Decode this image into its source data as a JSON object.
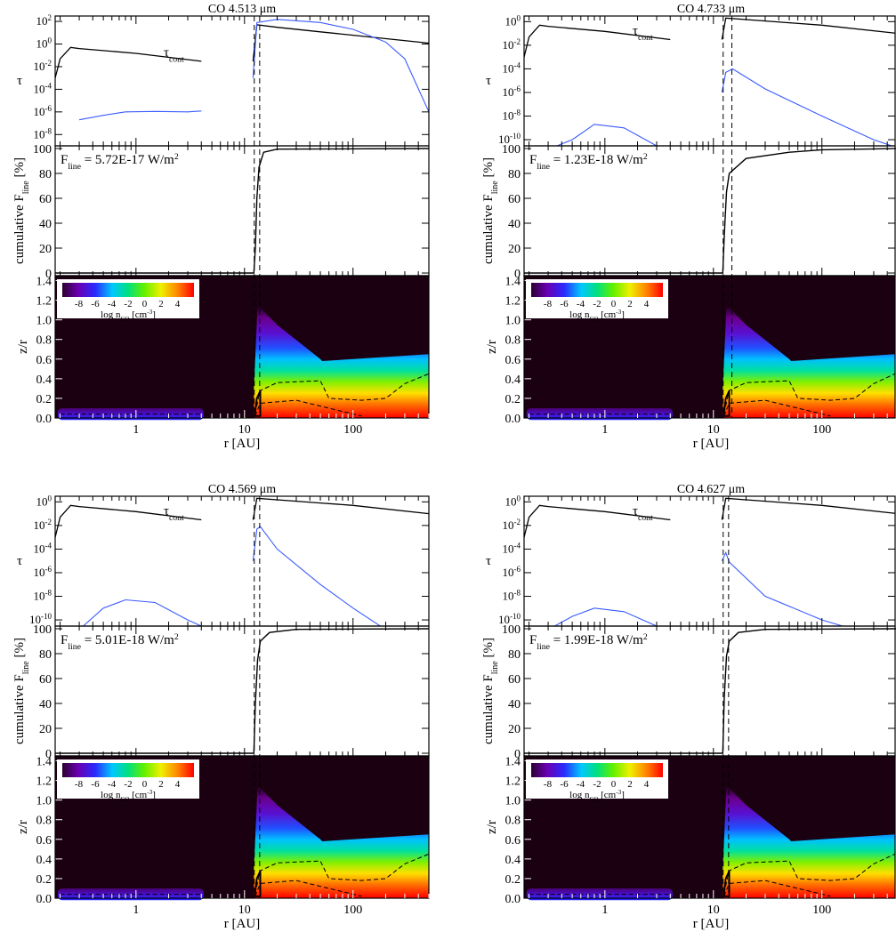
{
  "figure": {
    "x_label": "r [AU]",
    "tau_label": "τ",
    "tau_cont_label_main": "τ",
    "tau_cont_label_sub": "cont",
    "cum_label_main": "cumulative F",
    "cum_label_sub": "line",
    "cum_label_unit": " [%]",
    "zr_label": "z/r",
    "colorbar_label_main": "log n",
    "colorbar_label_sub": "CO",
    "colorbar_label_unit": " [cm",
    "colorbar_label_exp": "-3",
    "colorbar_label_close": "]",
    "flux_label_main": "F",
    "flux_label_sub": "line",
    "flux_unit_main": " W/m",
    "flux_unit_exp": "2",
    "colorbar_ticks": [
      "-8",
      "-6",
      "-4",
      "-2",
      "0",
      "2",
      "4"
    ]
  },
  "colors": {
    "tau_line": "#3a5bff",
    "continuum": "#000000",
    "background_dark": "#1a0010"
  },
  "chart_data": [
    {
      "type": "line",
      "title": "CO 4.513 μm",
      "flux": "5.72E-17",
      "x_scale": "log",
      "xlim": [
        0.18,
        500
      ],
      "x_ticks": [
        "1",
        "10",
        "100"
      ],
      "panels": {
        "tau": {
          "y_scale": "log",
          "ylim": [
            1e-09,
            300
          ],
          "y_ticks": [
            "10^2",
            "10^0",
            "10^-2",
            "10^-4",
            "10^-6",
            "10^-8"
          ],
          "continuum": [
            [
              0.18,
              0.001
            ],
            [
              0.2,
              0.05
            ],
            [
              0.25,
              0.5
            ],
            [
              0.3,
              0.4
            ],
            [
              1,
              0.15
            ],
            [
              4,
              0.03
            ],
            [
              12,
              0.03
            ],
            [
              13,
              50
            ],
            [
              20,
              30
            ],
            [
              50,
              12
            ],
            [
              100,
              6
            ],
            [
              500,
              1.2
            ]
          ],
          "line": [
            [
              0.3,
              2e-07
            ],
            [
              0.5,
              5e-07
            ],
            [
              0.8,
              1e-06
            ],
            [
              1.5,
              1.1e-06
            ],
            [
              3,
              1e-06
            ],
            [
              4,
              1.2e-06
            ],
            [
              12,
              0.001
            ],
            [
              13,
              80
            ],
            [
              20,
              150
            ],
            [
              50,
              80
            ],
            [
              100,
              20
            ],
            [
              200,
              1.5
            ],
            [
              300,
              0.05
            ],
            [
              500,
              1e-06
            ]
          ]
        },
        "cumulative": {
          "ylim": [
            0,
            100
          ],
          "y_ticks": [
            "0",
            "20",
            "40",
            "60",
            "80",
            "100"
          ],
          "curve": [
            [
              0.18,
              0
            ],
            [
              12.2,
              0
            ],
            [
              12.6,
              20
            ],
            [
              13,
              60
            ],
            [
              13.6,
              85
            ],
            [
              15,
              97
            ],
            [
              20,
              99.5
            ],
            [
              500,
              100
            ]
          ],
          "vlines": [
            12.3,
            13.8
          ]
        },
        "density": {
          "ylim": [
            0,
            1.45
          ],
          "y_ticks": [
            "0.0",
            "0.2",
            "0.4",
            "0.6",
            "0.8",
            "1.0",
            "1.2",
            "1.4"
          ],
          "colorbar_range": [
            -10,
            6
          ]
        }
      }
    },
    {
      "type": "line",
      "title": "CO 4.733 μm",
      "flux": "1.23E-18",
      "x_scale": "log",
      "xlim": [
        0.18,
        500
      ],
      "x_ticks": [
        "1",
        "10",
        "100"
      ],
      "panels": {
        "tau": {
          "y_scale": "log",
          "ylim": [
            3e-11,
            3
          ],
          "y_ticks": [
            "10^0",
            "10^-2",
            "10^-4",
            "10^-6",
            "10^-8",
            "10^-10"
          ],
          "continuum": [
            [
              0.18,
              0.001
            ],
            [
              0.2,
              0.05
            ],
            [
              0.25,
              0.5
            ],
            [
              0.3,
              0.4
            ],
            [
              1,
              0.15
            ],
            [
              4,
              0.03
            ],
            [
              12,
              0.03
            ],
            [
              13,
              2
            ],
            [
              20,
              1.5
            ],
            [
              50,
              0.8
            ],
            [
              100,
              0.5
            ],
            [
              500,
              0.1
            ]
          ],
          "line": [
            [
              0.3,
              1e-11
            ],
            [
              0.5,
              1e-10
            ],
            [
              0.8,
              2e-09
            ],
            [
              1.5,
              1e-09
            ],
            [
              3,
              3e-11
            ],
            [
              4,
              3e-11
            ],
            [
              12,
              1e-06
            ],
            [
              13,
              5e-05
            ],
            [
              15,
              0.0001
            ],
            [
              30,
              2e-06
            ],
            [
              100,
              1e-08
            ],
            [
              300,
              1e-10
            ],
            [
              500,
              2e-11
            ]
          ]
        },
        "cumulative": {
          "ylim": [
            0,
            100
          ],
          "y_ticks": [
            "0",
            "20",
            "40",
            "60",
            "80",
            "100"
          ],
          "curve": [
            [
              0.18,
              0
            ],
            [
              12.2,
              0
            ],
            [
              12.6,
              30
            ],
            [
              13.2,
              65
            ],
            [
              14,
              80
            ],
            [
              20,
              92
            ],
            [
              50,
              97
            ],
            [
              100,
              99
            ],
            [
              500,
              100
            ]
          ],
          "vlines": [
            12.3,
            14.8
          ]
        },
        "density": {
          "ylim": [
            0,
            1.45
          ],
          "y_ticks": [
            "0.0",
            "0.2",
            "0.4",
            "0.6",
            "0.8",
            "1.0",
            "1.2",
            "1.4"
          ],
          "colorbar_range": [
            -10,
            6
          ]
        }
      }
    },
    {
      "type": "line",
      "title": "CO 4.569 μm",
      "flux": "5.01E-18",
      "x_scale": "log",
      "xlim": [
        0.18,
        500
      ],
      "x_ticks": [
        "1",
        "10",
        "100"
      ],
      "panels": {
        "tau": {
          "y_scale": "log",
          "ylim": [
            3e-11,
            3
          ],
          "y_ticks": [
            "10^0",
            "10^-2",
            "10^-4",
            "10^-6",
            "10^-8",
            "10^-10"
          ],
          "continuum": [
            [
              0.18,
              0.001
            ],
            [
              0.2,
              0.05
            ],
            [
              0.25,
              0.5
            ],
            [
              0.3,
              0.4
            ],
            [
              1,
              0.15
            ],
            [
              4,
              0.03
            ],
            [
              12,
              0.03
            ],
            [
              13,
              2
            ],
            [
              20,
              1.5
            ],
            [
              50,
              0.8
            ],
            [
              100,
              0.5
            ],
            [
              500,
              0.1
            ]
          ],
          "line": [
            [
              0.3,
              1e-11
            ],
            [
              0.5,
              1e-09
            ],
            [
              0.8,
              5e-09
            ],
            [
              1.5,
              3e-09
            ],
            [
              3,
              1e-10
            ],
            [
              4,
              3e-11
            ],
            [
              12,
              1e-05
            ],
            [
              13,
              0.005
            ],
            [
              14,
              0.008
            ],
            [
              20,
              0.0001
            ],
            [
              50,
              1e-07
            ],
            [
              100,
              1e-09
            ],
            [
              200,
              1e-11
            ]
          ]
        },
        "cumulative": {
          "ylim": [
            0,
            100
          ],
          "y_ticks": [
            "0",
            "20",
            "40",
            "60",
            "80",
            "100"
          ],
          "curve": [
            [
              0.18,
              0
            ],
            [
              12.2,
              0
            ],
            [
              12.6,
              40
            ],
            [
              13.2,
              75
            ],
            [
              14,
              90
            ],
            [
              17,
              97
            ],
            [
              30,
              99.5
            ],
            [
              500,
              100
            ]
          ],
          "vlines": [
            12.3,
            13.8
          ]
        },
        "density": {
          "ylim": [
            0,
            1.45
          ],
          "y_ticks": [
            "0.0",
            "0.2",
            "0.4",
            "0.6",
            "0.8",
            "1.0",
            "1.2",
            "1.4"
          ],
          "colorbar_range": [
            -10,
            6
          ]
        }
      }
    },
    {
      "type": "line",
      "title": "CO 4.627 μm",
      "flux": "1.99E-18",
      "x_scale": "log",
      "xlim": [
        0.18,
        500
      ],
      "x_ticks": [
        "1",
        "10",
        "100"
      ],
      "panels": {
        "tau": {
          "y_scale": "log",
          "ylim": [
            3e-11,
            3
          ],
          "y_ticks": [
            "10^0",
            "10^-2",
            "10^-4",
            "10^-6",
            "10^-8",
            "10^-10"
          ],
          "continuum": [
            [
              0.18,
              0.001
            ],
            [
              0.2,
              0.05
            ],
            [
              0.25,
              0.5
            ],
            [
              0.3,
              0.4
            ],
            [
              1,
              0.15
            ],
            [
              4,
              0.03
            ],
            [
              12,
              0.03
            ],
            [
              13,
              2
            ],
            [
              20,
              1.5
            ],
            [
              50,
              0.8
            ],
            [
              100,
              0.5
            ],
            [
              500,
              0.1
            ]
          ],
          "line": [
            [
              0.3,
              1e-11
            ],
            [
              0.5,
              2e-10
            ],
            [
              0.8,
              1e-09
            ],
            [
              1.5,
              5e-10
            ],
            [
              3,
              3e-11
            ],
            [
              4,
              3e-11
            ],
            [
              12,
              1e-05
            ],
            [
              13,
              5e-05
            ],
            [
              14,
              8e-06
            ],
            [
              30,
              1e-08
            ],
            [
              100,
              1e-10
            ],
            [
              200,
              1e-11
            ]
          ]
        },
        "cumulative": {
          "ylim": [
            0,
            100
          ],
          "y_ticks": [
            "0",
            "20",
            "40",
            "60",
            "80",
            "100"
          ],
          "curve": [
            [
              0.18,
              0
            ],
            [
              12.2,
              0
            ],
            [
              12.6,
              45
            ],
            [
              13.2,
              78
            ],
            [
              14,
              90
            ],
            [
              17,
              97
            ],
            [
              30,
              99.5
            ],
            [
              500,
              100
            ]
          ],
          "vlines": [
            12.3,
            13.8
          ]
        },
        "density": {
          "ylim": [
            0,
            1.45
          ],
          "y_ticks": [
            "0.0",
            "0.2",
            "0.4",
            "0.6",
            "0.8",
            "1.0",
            "1.2",
            "1.4"
          ],
          "colorbar_range": [
            -10,
            6
          ]
        }
      }
    }
  ]
}
